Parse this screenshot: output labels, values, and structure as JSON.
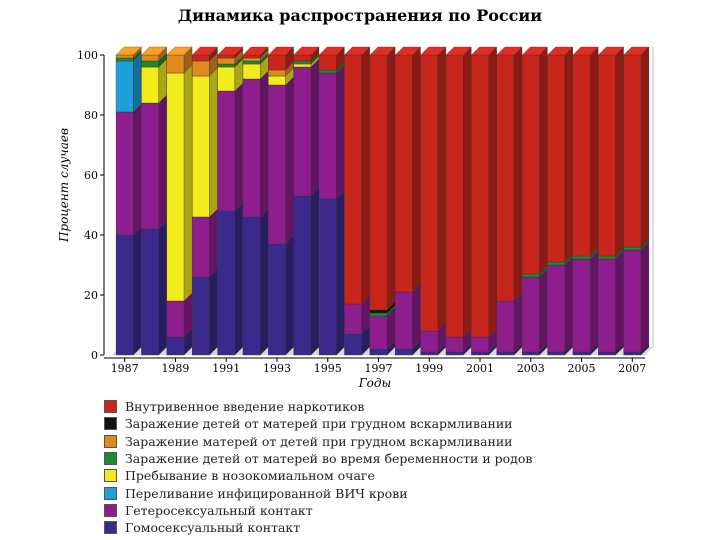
{
  "chart_data": {
    "type": "bar",
    "stacked": true,
    "title": "Динамика распространения по России",
    "xlabel": "Годы",
    "ylabel": "Процент случаев",
    "ylim": [
      0,
      100
    ],
    "yticks": [
      0,
      20,
      40,
      60,
      80,
      100
    ],
    "categories": [
      "1987",
      "1988",
      "1989",
      "1990",
      "1991",
      "1992",
      "1993",
      "1994",
      "1995",
      "1996",
      "1997",
      "1998",
      "1999",
      "2000",
      "2001",
      "2002",
      "2003",
      "2004",
      "2005",
      "2006",
      "2007"
    ],
    "xtick_labels": [
      "1987",
      "1989",
      "1991",
      "1993",
      "1995",
      "1997",
      "1999",
      "2001",
      "2003",
      "2005",
      "2007"
    ],
    "series": [
      {
        "name": "Гомосексуальный контакт",
        "color": "#3b2a8c",
        "values": [
          40,
          42,
          6,
          26,
          48,
          46,
          37,
          53,
          52,
          7,
          2,
          2,
          1,
          1,
          1,
          1,
          1,
          1,
          1,
          1,
          1
        ]
      },
      {
        "name": "Гетеросексуальный контакт",
        "color": "#8e1e8e",
        "values": [
          41,
          42,
          12,
          20,
          40,
          46,
          53,
          43,
          42,
          10,
          11,
          19,
          7,
          5,
          5,
          17,
          25,
          29,
          31,
          31,
          34
        ]
      },
      {
        "name": "Переливание инфицированной ВИЧ крови",
        "color": "#1d9fd9",
        "values": [
          17,
          0,
          0,
          0,
          0,
          0,
          0,
          0,
          0,
          0,
          0,
          0,
          0,
          0,
          0,
          0,
          0,
          0,
          0,
          0,
          0
        ]
      },
      {
        "name": "Пребывание в нозокомиальном очаге",
        "color": "#f2ec1d",
        "values": [
          0,
          12,
          76,
          47,
          8,
          5,
          3,
          1,
          0,
          0,
          0,
          0,
          0,
          0,
          0,
          0,
          0,
          0,
          0,
          0,
          0
        ]
      },
      {
        "name": "Заражение детей от матерей во время беременности и родов",
        "color": "#1f8a2e",
        "values": [
          1,
          2,
          0,
          0,
          1,
          1,
          0,
          1,
          1,
          0,
          1,
          0,
          0,
          0,
          0,
          0,
          1,
          1,
          1,
          1,
          1
        ]
      },
      {
        "name": "Заражение матерей от детей при грудном вскармливании",
        "color": "#e08a1e",
        "values": [
          1,
          2,
          6,
          5,
          2,
          1,
          2,
          0,
          0,
          0,
          0,
          0,
          0,
          0,
          0,
          0,
          0,
          0,
          0,
          0,
          0
        ]
      },
      {
        "name": "Заражение детей от матерей при грудном вскармливании",
        "color": "#111111",
        "values": [
          0,
          0,
          0,
          0,
          0,
          0,
          0,
          0,
          0,
          0,
          1,
          0,
          0,
          0,
          0,
          0,
          0,
          0,
          0,
          0,
          0
        ]
      },
      {
        "name": "Внутривенное введение наркотиков",
        "color": "#c8261c",
        "values": [
          0,
          0,
          0,
          2,
          1,
          1,
          5,
          2,
          5,
          83,
          85,
          79,
          92,
          94,
          94,
          82,
          73,
          69,
          67,
          67,
          64
        ]
      }
    ],
    "legend_position": "bottom",
    "grid": false
  }
}
